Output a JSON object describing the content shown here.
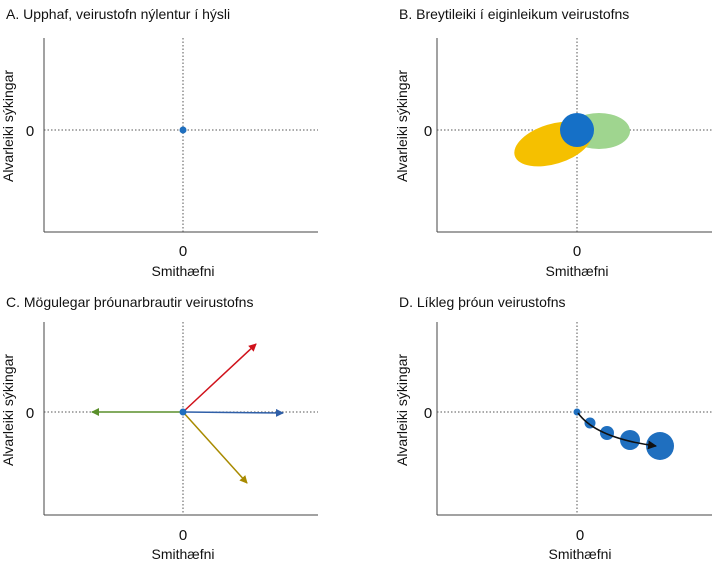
{
  "colors": {
    "axis": "#444444",
    "dotted": "#555555",
    "origin_dot": "#1f6fbf",
    "blue_blob": "#1570c7",
    "yellow_blob": "#f5c000",
    "green_blob": "#9fd58f",
    "red_arrow": "#d0121b",
    "blue_arrow": "#2f5fa8",
    "green_arrow": "#5a8f2b",
    "olive_arrow": "#a88a00",
    "black": "#111111"
  },
  "panels": [
    {
      "id": "A",
      "title": "A. Upphaf, veirustofn nýlentur í hýsli",
      "xlabel": "Smithæfni",
      "ylabel": "Alvarleiki sýkingar",
      "x_zero": "0",
      "y_zero": "0"
    },
    {
      "id": "B",
      "title": "B. Breytileiki í eiginleikum veirustofns",
      "xlabel": "Smithæfni",
      "ylabel": "Alvarleiki sýkingar",
      "x_zero": "0",
      "y_zero": "0"
    },
    {
      "id": "C",
      "title": "C. Mögulegar þróunarbrautir veirustofns",
      "xlabel": "Smithæfni",
      "ylabel": "Alvarleiki sýkingar",
      "x_zero": "0",
      "y_zero": "0"
    },
    {
      "id": "D",
      "title": "D. Líkleg þróun veirustofns",
      "xlabel": "Smithæfni",
      "ylabel": "Alvarleiki sýkingar",
      "x_zero": "0",
      "y_zero": "0"
    }
  ]
}
